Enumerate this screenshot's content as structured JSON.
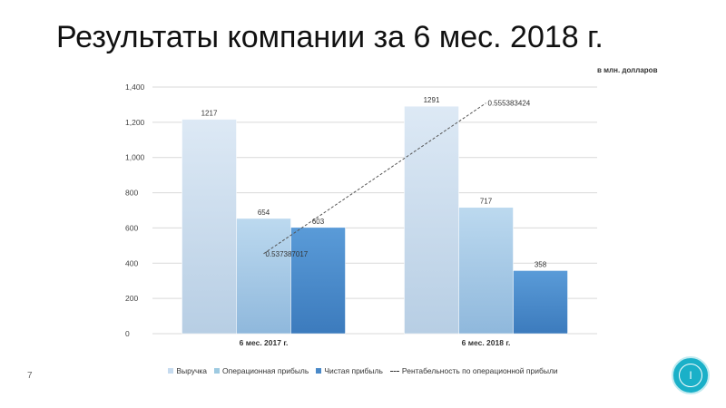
{
  "slide": {
    "title": "Результаты компании за 6 мес. 2018 г.",
    "unit_note": "в млн. долларов",
    "page_number": "7",
    "badge_glyph": "I"
  },
  "colors": {
    "revenue": "#c6dbef",
    "operating_profit": "#9ecae1",
    "net_profit": "#4a89c8",
    "grid": "#d9d9d9",
    "trend": "#555555",
    "accent": "#1ab0c8"
  },
  "chart_data": {
    "type": "bar",
    "categories": [
      "6 мес. 2017 г.",
      "6 мес. 2018 г."
    ],
    "series": [
      {
        "name": "Выручка",
        "values": [
          1217,
          1291
        ],
        "labels": [
          "1217",
          "1291"
        ]
      },
      {
        "name": "Операционная прибыль",
        "values": [
          654,
          717
        ],
        "labels": [
          "654",
          "717"
        ]
      },
      {
        "name": "Чистая прибыль",
        "values": [
          603,
          358
        ],
        "labels": [
          "603",
          "358"
        ]
      }
    ],
    "line_series": {
      "name": "Рентабельность по операционной прибыли",
      "values": [
        0.537387017,
        0.555383424
      ],
      "labels": [
        "0.537387017",
        "0.555383424"
      ],
      "style": "dashed"
    },
    "ylim": [
      0,
      1400
    ],
    "yticks": [
      0,
      200,
      400,
      600,
      800,
      1000,
      1200,
      1400
    ],
    "ytick_labels": [
      "0",
      "200",
      "400",
      "600",
      "800",
      "1,000",
      "1,200",
      "1,400"
    ],
    "grid": true,
    "legend_position": "bottom"
  }
}
